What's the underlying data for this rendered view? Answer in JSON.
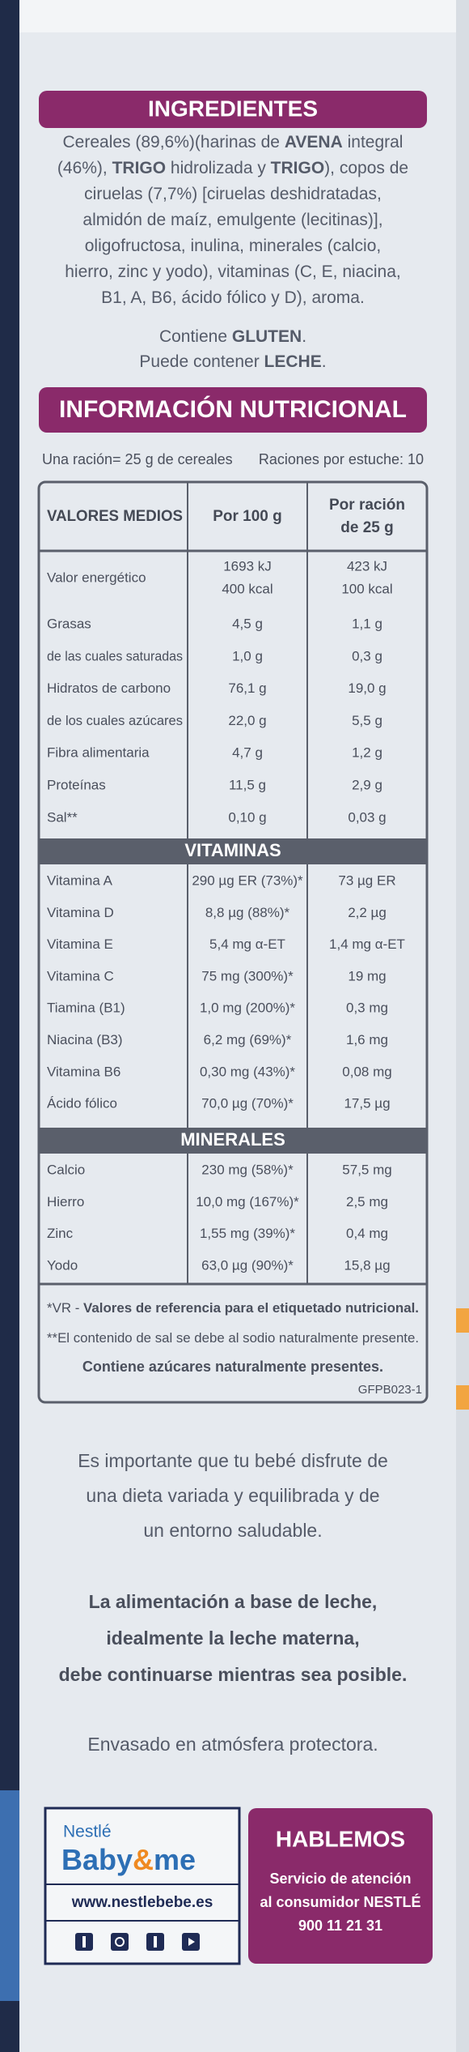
{
  "ingredients": {
    "title": "INGREDIENTES",
    "lines": [
      [
        "Cereales (89,6%)(harinas de ",
        "AVENA",
        " integral"
      ],
      [
        "(46%), ",
        "TRIGO",
        " hidrolizada y ",
        "TRIGO",
        "), copos de"
      ],
      [
        "ciruelas (7,7%) [ciruelas deshidratadas,"
      ],
      [
        "almidón de maíz, emulgente (lecitinas)],"
      ],
      [
        "oligofructosa, inulina, minerales (calcio,"
      ],
      [
        "hierro, zinc y yodo), vitaminas (C, E, niacina,"
      ],
      [
        "B1, A, B6, ácido fólico y D), aroma."
      ]
    ],
    "notes": [
      [
        "Contiene ",
        "GLUTEN",
        "."
      ],
      [
        "Puede contener ",
        "LECHE",
        "."
      ]
    ]
  },
  "nutrition": {
    "title": "INFORMACIÓN NUTRICIONAL",
    "serving": "Una ración= 25 g de cereales",
    "servings_per_pack": "Raciones por estuche: 10",
    "header": [
      [
        "VALORES MEDIOS"
      ],
      [
        "Por 100 g"
      ],
      [
        "Por ración",
        "de 25 g"
      ]
    ],
    "rows": [
      [
        [
          "Valor energético"
        ],
        [
          "1693 kJ",
          "400 kcal"
        ],
        [
          "423 kJ",
          "100 kcal"
        ]
      ],
      [
        [
          "Grasas"
        ],
        [
          "4,5 g"
        ],
        [
          "1,1 g"
        ]
      ],
      [
        [
          "de las cuales saturadas"
        ],
        [
          "1,0 g"
        ],
        [
          "0,3 g"
        ]
      ],
      [
        [
          "Hidratos de carbono"
        ],
        [
          "76,1 g"
        ],
        [
          "19,0 g"
        ]
      ],
      [
        [
          "de los cuales azúcares"
        ],
        [
          "22,0 g"
        ],
        [
          "5,5 g"
        ]
      ],
      [
        [
          "Fibra alimentaria"
        ],
        [
          "4,7 g"
        ],
        [
          "1,2 g"
        ]
      ],
      [
        [
          "Proteínas"
        ],
        [
          "11,5 g"
        ],
        [
          "2,9 g"
        ]
      ],
      [
        [
          "Sal**"
        ],
        [
          "0,10 g"
        ],
        [
          "0,03 g"
        ]
      ]
    ],
    "vitamins": {
      "title": "VITAMINAS",
      "rows": [
        [
          [
            "Vitamina A"
          ],
          [
            "290 µg ER (73%)*"
          ],
          [
            "73 µg ER"
          ]
        ],
        [
          [
            "Vitamina D"
          ],
          [
            "8,8 µg (88%)*"
          ],
          [
            "2,2 µg"
          ]
        ],
        [
          [
            "Vitamina E"
          ],
          [
            "5,4 mg α-ET"
          ],
          [
            "1,4 mg α-ET"
          ]
        ],
        [
          [
            "Vitamina C"
          ],
          [
            "75 mg (300%)*"
          ],
          [
            "19 mg"
          ]
        ],
        [
          [
            "Tiamina (B1)"
          ],
          [
            "1,0 mg (200%)*"
          ],
          [
            "0,3 mg"
          ]
        ],
        [
          [
            "Niacina (B3)"
          ],
          [
            "6,2 mg (69%)*"
          ],
          [
            "1,6 mg"
          ]
        ],
        [
          [
            "Vitamina B6"
          ],
          [
            "0,30 mg (43%)*"
          ],
          [
            "0,08 mg"
          ]
        ],
        [
          [
            "Ácido fólico"
          ],
          [
            "70,0 µg (70%)*"
          ],
          [
            "17,5 µg"
          ]
        ]
      ]
    },
    "minerals": {
      "title": "MINERALES",
      "rows": [
        [
          [
            "Calcio"
          ],
          [
            "230 mg (58%)*"
          ],
          [
            "57,5 mg"
          ]
        ],
        [
          [
            "Hierro"
          ],
          [
            "10,0 mg (167%)*"
          ],
          [
            "2,5 mg"
          ]
        ],
        [
          [
            "Zinc"
          ],
          [
            "1,55 mg (39%)*"
          ],
          [
            "0,4 mg"
          ]
        ],
        [
          [
            "Yodo"
          ],
          [
            "63,0 µg (90%)*"
          ],
          [
            "15,8 µg"
          ]
        ]
      ]
    },
    "footnotes": [
      [
        "*VR - ",
        "Valores de referencia para el etiquetado nutricional."
      ],
      [
        "**El contenido de sal se debe al sodio naturalmente presente."
      ]
    ],
    "sugar_note": "Contiene azúcares naturalmente presentes.",
    "code": "GFPB023-1"
  },
  "messages": {
    "diet": [
      "Es importante que tu bebé disfrute de",
      "una dieta variada y equilibrada y de",
      "un entorno saludable."
    ],
    "feeding": [
      "La alimentación a base de leche,",
      "idealmente la leche materna,",
      "debe continuarse mientras sea posible."
    ],
    "packaging": "Envasado en atmósfera protectora."
  },
  "brand": {
    "nestle": "Nestlé",
    "baby": "Baby",
    "amp": "&",
    "me": "me",
    "url": "www.nestlebebe.es"
  },
  "contact": {
    "title": "HABLEMOS",
    "lines": [
      "Servicio de atención",
      "al consumidor NESTLÉ",
      "900 11 21 31"
    ]
  }
}
